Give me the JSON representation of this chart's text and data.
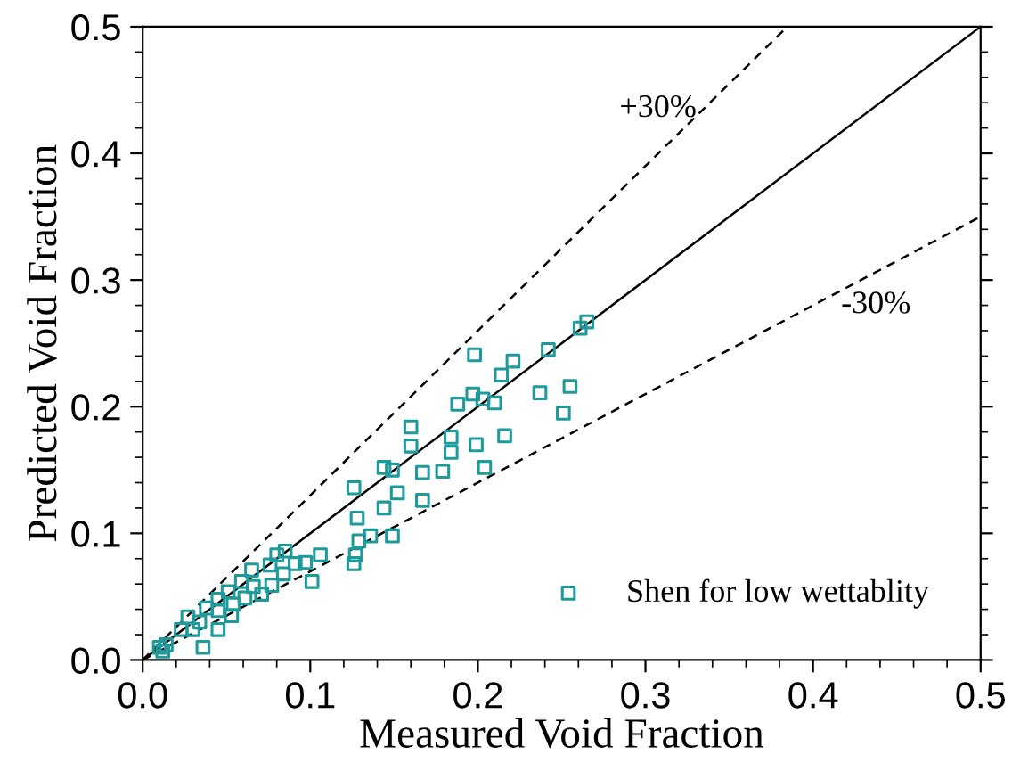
{
  "chart_data": {
    "type": "scatter",
    "xlabel": "Measured Void Fraction",
    "ylabel": "Predicted Void Fraction",
    "xlim": [
      0,
      0.5
    ],
    "ylim": [
      0,
      0.5
    ],
    "xticks": [
      {
        "value": 0,
        "label": "0.0"
      },
      0.1,
      0.2,
      0.3,
      0.4,
      0.5
    ],
    "yticks": [
      {
        "value": 0,
        "label": "0.0"
      },
      0.1,
      0.2,
      0.3,
      0.4,
      0.5
    ],
    "grid": false,
    "legend": "bottom right",
    "annotations": [
      "+30%",
      "-30%"
    ],
    "series": [
      {
        "name": "Shen for low wettablity",
        "color": "#1f9a9a",
        "marker": "square",
        "x": [
          0.01,
          0.014,
          0.012,
          0.023,
          0.027,
          0.03,
          0.034,
          0.036,
          0.038,
          0.045,
          0.045,
          0.045,
          0.051,
          0.053,
          0.054,
          0.059,
          0.061,
          0.065,
          0.066,
          0.071,
          0.076,
          0.077,
          0.08,
          0.084,
          0.085,
          0.091,
          0.097,
          0.101,
          0.106,
          0.126,
          0.126,
          0.127,
          0.128,
          0.129,
          0.136,
          0.144,
          0.144,
          0.149,
          0.149,
          0.152,
          0.16,
          0.16,
          0.167,
          0.167,
          0.179,
          0.184,
          0.184,
          0.188,
          0.197,
          0.198,
          0.199,
          0.203,
          0.204,
          0.21,
          0.214,
          0.216,
          0.221,
          0.237,
          0.242,
          0.251,
          0.255,
          0.261,
          0.265
        ],
        "values": [
          0.01,
          0.012,
          0.007,
          0.024,
          0.034,
          0.024,
          0.03,
          0.01,
          0.041,
          0.048,
          0.039,
          0.024,
          0.054,
          0.035,
          0.044,
          0.062,
          0.049,
          0.071,
          0.058,
          0.052,
          0.075,
          0.059,
          0.083,
          0.068,
          0.086,
          0.076,
          0.077,
          0.062,
          0.083,
          0.136,
          0.076,
          0.083,
          0.112,
          0.094,
          0.098,
          0.12,
          0.152,
          0.15,
          0.098,
          0.132,
          0.184,
          0.169,
          0.126,
          0.148,
          0.149,
          0.176,
          0.164,
          0.202,
          0.21,
          0.241,
          0.17,
          0.206,
          0.152,
          0.203,
          0.225,
          0.177,
          0.236,
          0.211,
          0.245,
          0.195,
          0.216,
          0.262,
          0.267
        ]
      },
      {
        "type": "line",
        "color": "#000000",
        "line_style": "solid",
        "marker": "none",
        "x": [
          0,
          0.5
        ],
        "values": [
          0,
          0.5
        ]
      },
      {
        "type": "line",
        "color": "#000000",
        "line_style": "dashed",
        "marker": "none",
        "x": [
          0,
          0.3846
        ],
        "values": [
          0,
          0.5
        ]
      },
      {
        "type": "line",
        "color": "#000000",
        "line_style": "dashed",
        "marker": "none",
        "x": [
          0,
          0.5
        ],
        "values": [
          0,
          0.35
        ]
      }
    ]
  }
}
